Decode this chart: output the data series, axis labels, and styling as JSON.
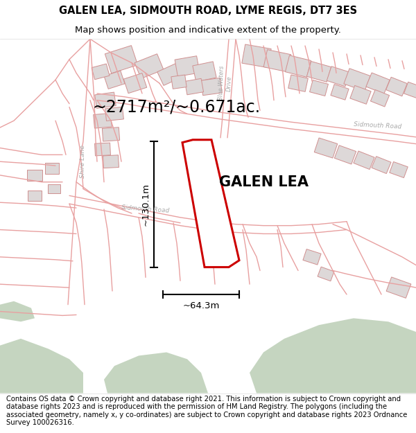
{
  "title_line1": "GALEN LEA, SIDMOUTH ROAD, LYME REGIS, DT7 3ES",
  "title_line2": "Map shows position and indicative extent of the property.",
  "property_label": "GALEN LEA",
  "area_label": "~2717m²/~0.671ac.",
  "dim_vertical": "~130.1m",
  "dim_horizontal": "~64.3m",
  "footer_text": "Contains OS data © Crown copyright and database right 2021. This information is subject to Crown copyright and database rights 2023 and is reproduced with the permission of HM Land Registry. The polygons (including the associated geometry, namely x, y co-ordinates) are subject to Crown copyright and database rights 2023 Ordnance Survey 100026316.",
  "bg_color": "#ffffff",
  "map_bg": "#f8f4f4",
  "line_color": "#e8a0a0",
  "highlight_color": "#cc0000",
  "green_color": "#c5d5c0",
  "building_fill": "#ddd8d8",
  "building_edge": "#d09090",
  "road_label_color": "#aaaaaa",
  "text_color": "#000000",
  "title_fontsize": 10.5,
  "subtitle_fontsize": 9.5,
  "footer_fontsize": 7.2
}
